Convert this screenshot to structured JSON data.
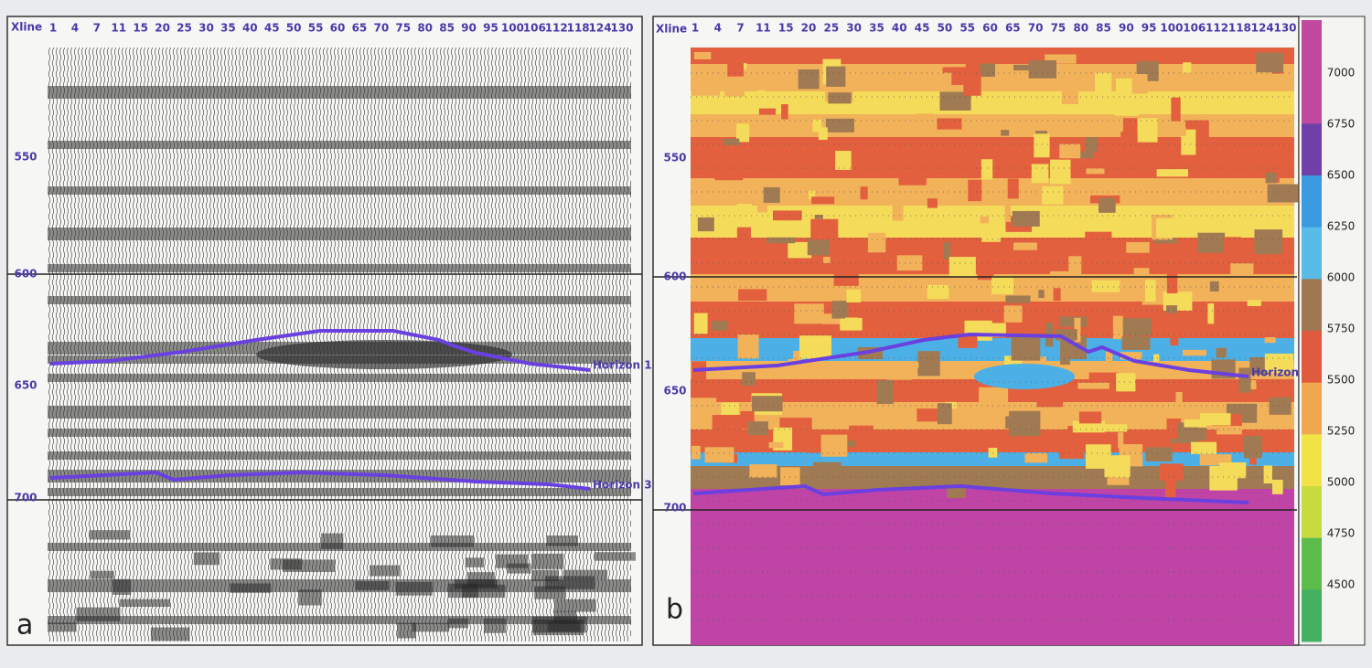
{
  "panel_a": {
    "label": "a",
    "x_axis_title": "Xline",
    "x_labels": [
      "1",
      "4",
      "7",
      "11",
      "15",
      "20",
      "25",
      "30",
      "35",
      "40",
      "45",
      "50",
      "55",
      "60",
      "65",
      "70",
      "75",
      "80",
      "85",
      "90",
      "95",
      "100",
      "106",
      "112",
      "118",
      "124",
      "130"
    ],
    "y_labels": [
      "550",
      "600",
      "650",
      "700"
    ],
    "horizons": [
      "Horizon 1",
      "Horizon 3"
    ]
  },
  "panel_b": {
    "label": "b",
    "x_axis_title": "Xline",
    "x_labels": [
      "1",
      "4",
      "7",
      "11",
      "15",
      "20",
      "25",
      "30",
      "35",
      "40",
      "45",
      "50",
      "55",
      "60",
      "65",
      "70",
      "75",
      "80",
      "85",
      "90",
      "95",
      "100",
      "106",
      "112",
      "118",
      "124",
      "130"
    ],
    "y_labels": [
      "550",
      "600",
      "650",
      "700"
    ],
    "horizons": [
      "Horizon"
    ]
  },
  "colorbar": {
    "labels": [
      "7000",
      "6750",
      "6500",
      "6250",
      "6000",
      "5750",
      "5500",
      "5250",
      "5000",
      "4750",
      "4500"
    ]
  }
}
